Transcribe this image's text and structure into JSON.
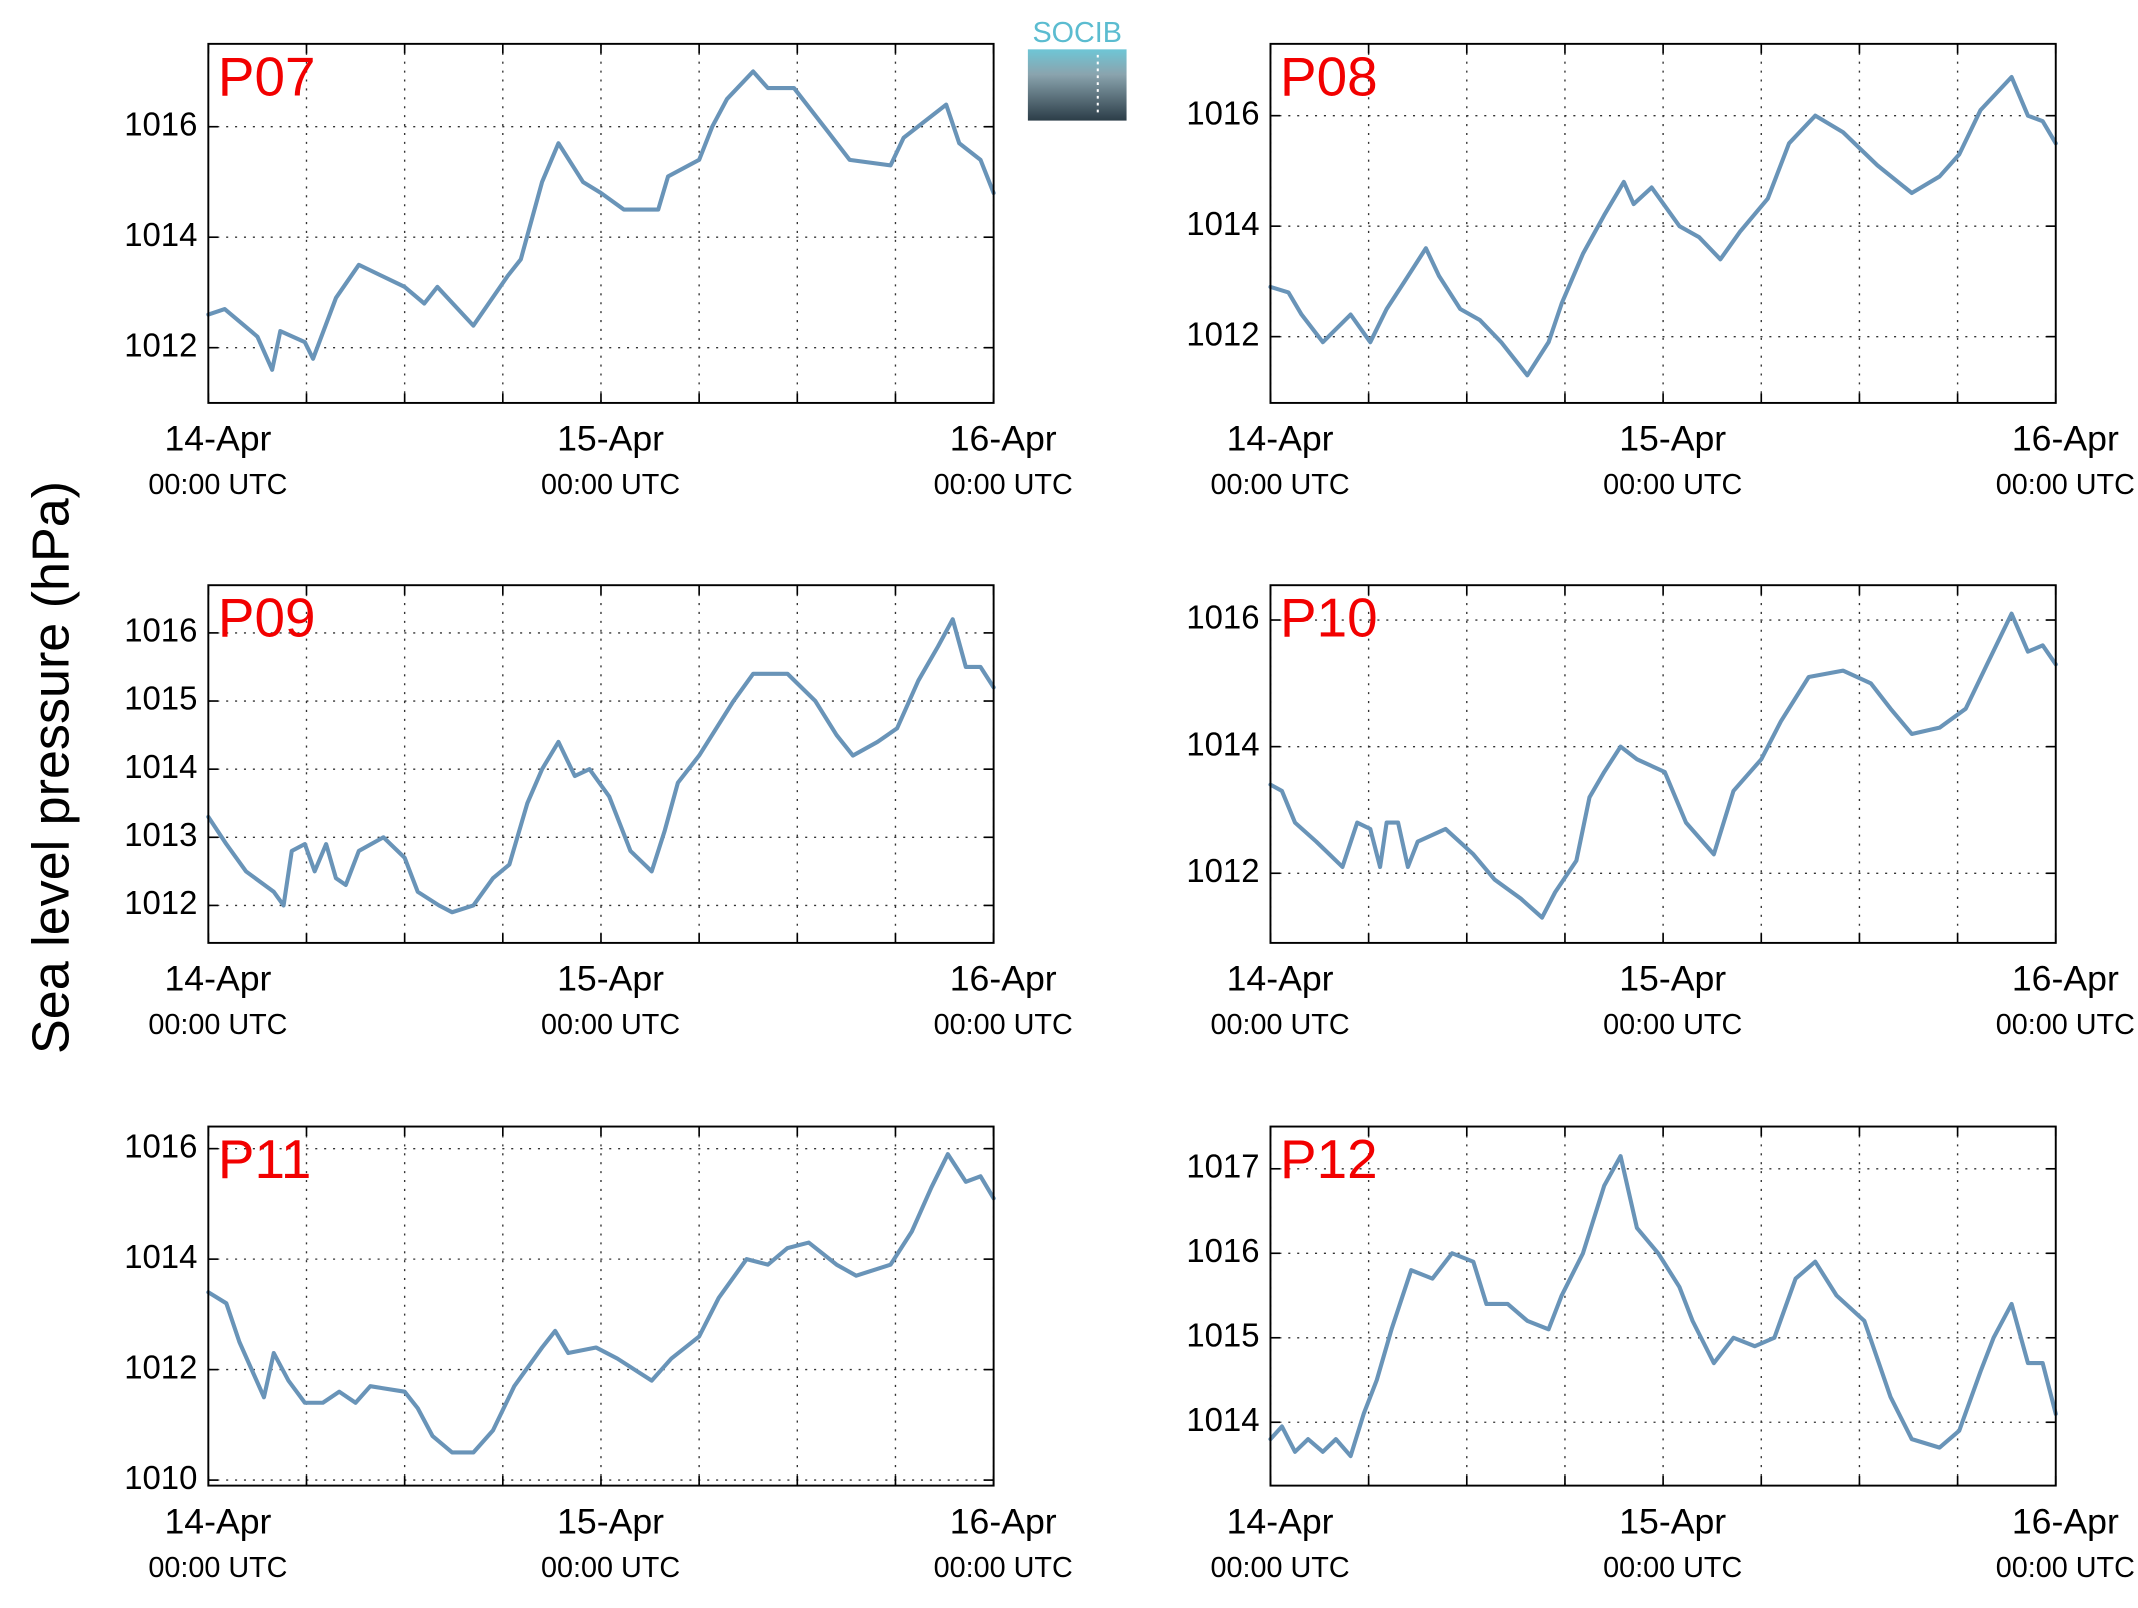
{
  "ylabel": "Sea level pressure (hPa)",
  "logo": "SOCIB",
  "chart_data": [
    {
      "type": "line",
      "title": "P07",
      "color": "#6994b8",
      "xlim": [
        0,
        48
      ],
      "ylim": [
        1011,
        1017.5
      ],
      "xticks": [
        {
          "value": 0,
          "label": "14-Apr",
          "sublabel": "00:00 UTC"
        },
        {
          "value": 24,
          "label": "15-Apr",
          "sublabel": "00:00 UTC"
        },
        {
          "value": 48,
          "label": "16-Apr",
          "sublabel": "00:00 UTC"
        }
      ],
      "xminorticks": [
        6,
        12,
        18,
        30,
        36,
        42
      ],
      "yticks": [
        1012,
        1014,
        1016
      ],
      "grid": true,
      "x": [
        0,
        1,
        3,
        3.9,
        4.4,
        5.9,
        6.4,
        7.8,
        9.2,
        12,
        13.2,
        14,
        16.2,
        18.3,
        19.1,
        20.4,
        21.4,
        22.9,
        24,
        25.4,
        27.5,
        28.1,
        30,
        30.8,
        31.7,
        33.3,
        34.2,
        35.8,
        37.9,
        39.2,
        41.7,
        42.5,
        45.1,
        45.9,
        47.2,
        48
      ],
      "values": [
        1012.6,
        1012.7,
        1012.2,
        1011.6,
        1012.3,
        1012.1,
        1011.8,
        1012.9,
        1013.5,
        1013.1,
        1012.8,
        1013.1,
        1012.4,
        1013.3,
        1013.6,
        1015.0,
        1015.7,
        1015.0,
        1014.8,
        1014.5,
        1014.5,
        1015.1,
        1015.4,
        1016.0,
        1016.5,
        1017.0,
        1016.7,
        1016.7,
        1015.9,
        1015.4,
        1015.3,
        1015.8,
        1016.4,
        1015.7,
        1015.4,
        1014.8
      ]
    },
    {
      "type": "line",
      "title": "P08",
      "color": "#6994b8",
      "xlim": [
        0,
        48
      ],
      "ylim": [
        1010.8,
        1017.3
      ],
      "xticks": [
        {
          "value": 0,
          "label": "14-Apr",
          "sublabel": "00:00 UTC"
        },
        {
          "value": 24,
          "label": "15-Apr",
          "sublabel": "00:00 UTC"
        },
        {
          "value": 48,
          "label": "16-Apr",
          "sublabel": "00:00 UTC"
        }
      ],
      "xminorticks": [
        6,
        12,
        18,
        30,
        36,
        42
      ],
      "yticks": [
        1012,
        1014,
        1016
      ],
      "grid": true,
      "x": [
        0,
        1.1,
        1.9,
        3.2,
        4.9,
        6.1,
        7.1,
        8.2,
        9.5,
        10.3,
        11.6,
        12.8,
        14.1,
        15.7,
        17,
        17.8,
        19.1,
        20.4,
        21.6,
        22.2,
        23.3,
        25,
        26.2,
        27.5,
        28.7,
        30.4,
        31.7,
        33.3,
        35,
        37.1,
        39.2,
        40.9,
        42.1,
        43.4,
        45.3,
        46.3,
        47.2,
        48
      ],
      "values": [
        1012.9,
        1012.8,
        1012.4,
        1011.9,
        1012.4,
        1011.9,
        1012.5,
        1013.0,
        1013.6,
        1013.1,
        1012.5,
        1012.3,
        1011.9,
        1011.3,
        1011.9,
        1012.6,
        1013.5,
        1014.2,
        1014.8,
        1014.4,
        1014.7,
        1014.0,
        1013.8,
        1013.4,
        1013.9,
        1014.5,
        1015.5,
        1016.0,
        1015.7,
        1015.1,
        1014.6,
        1014.9,
        1015.3,
        1016.1,
        1016.7,
        1016.0,
        1015.9,
        1015.5
      ]
    },
    {
      "type": "line",
      "title": "P09",
      "color": "#6994b8",
      "xlim": [
        0,
        48
      ],
      "ylim": [
        1011.45,
        1016.7
      ],
      "xticks": [
        {
          "value": 0,
          "label": "14-Apr",
          "sublabel": "00:00 UTC"
        },
        {
          "value": 24,
          "label": "15-Apr",
          "sublabel": "00:00 UTC"
        },
        {
          "value": 48,
          "label": "16-Apr",
          "sublabel": "00:00 UTC"
        }
      ],
      "xminorticks": [
        6,
        12,
        18,
        30,
        36,
        42
      ],
      "yticks": [
        1012,
        1013,
        1014,
        1015,
        1016
      ],
      "grid": true,
      "x": [
        0,
        1.1,
        2.3,
        4,
        4.6,
        5.1,
        5.9,
        6.5,
        7.2,
        7.8,
        8.4,
        9.2,
        10.7,
        12,
        12.8,
        14.1,
        14.9,
        16.2,
        17.4,
        18.4,
        19.5,
        20.4,
        21.4,
        22.4,
        23.3,
        24.5,
        25.8,
        27.1,
        27.9,
        28.7,
        30,
        32.1,
        33.3,
        35.4,
        37.1,
        38.4,
        39.4,
        40.9,
        42.1,
        43.4,
        44.6,
        45.5,
        46.3,
        47.2,
        48
      ],
      "values": [
        1013.3,
        1012.9,
        1012.5,
        1012.2,
        1012.0,
        1012.8,
        1012.9,
        1012.5,
        1012.9,
        1012.4,
        1012.3,
        1012.8,
        1013.0,
        1012.7,
        1012.2,
        1012.0,
        1011.9,
        1012.0,
        1012.4,
        1012.6,
        1013.5,
        1014.0,
        1014.4,
        1013.9,
        1014.0,
        1013.6,
        1012.8,
        1012.5,
        1013.1,
        1013.8,
        1014.2,
        1015.0,
        1015.4,
        1015.4,
        1015.0,
        1014.5,
        1014.2,
        1014.4,
        1014.6,
        1015.3,
        1015.8,
        1016.2,
        1015.5,
        1015.5,
        1015.2
      ]
    },
    {
      "type": "line",
      "title": "P10",
      "color": "#6994b8",
      "xlim": [
        0,
        48
      ],
      "ylim": [
        1010.9,
        1016.55
      ],
      "xticks": [
        {
          "value": 0,
          "label": "14-Apr",
          "sublabel": "00:00 UTC"
        },
        {
          "value": 24,
          "label": "15-Apr",
          "sublabel": "00:00 UTC"
        },
        {
          "value": 48,
          "label": "16-Apr",
          "sublabel": "00:00 UTC"
        }
      ],
      "xminorticks": [
        6,
        12,
        18,
        30,
        36,
        42
      ],
      "yticks": [
        1012,
        1014,
        1016
      ],
      "grid": true,
      "x": [
        0,
        0.7,
        1.5,
        2.8,
        3.6,
        4.4,
        5.3,
        6.1,
        6.7,
        7.1,
        7.8,
        8.4,
        9,
        10.7,
        12.4,
        13.7,
        15.3,
        16.6,
        17.4,
        18.7,
        19.5,
        20.4,
        21.4,
        22.4,
        24.1,
        25.4,
        27.1,
        28.3,
        30,
        31.2,
        32.9,
        35,
        36.7,
        37.9,
        39.2,
        40.9,
        42.5,
        43.8,
        45.3,
        46.3,
        47.2,
        48
      ],
      "values": [
        1013.4,
        1013.3,
        1012.8,
        1012.5,
        1012.3,
        1012.1,
        1012.8,
        1012.7,
        1012.1,
        1012.8,
        1012.8,
        1012.1,
        1012.5,
        1012.7,
        1012.3,
        1011.9,
        1011.6,
        1011.3,
        1011.7,
        1012.2,
        1013.2,
        1013.6,
        1014.0,
        1013.8,
        1013.6,
        1012.8,
        1012.3,
        1013.3,
        1013.8,
        1014.4,
        1015.1,
        1015.2,
        1015.0,
        1014.6,
        1014.2,
        1014.3,
        1014.6,
        1015.3,
        1016.1,
        1015.5,
        1015.6,
        1015.3
      ]
    },
    {
      "type": "line",
      "title": "P11",
      "color": "#6994b8",
      "xlim": [
        0,
        48
      ],
      "ylim": [
        1009.9,
        1016.4
      ],
      "xticks": [
        {
          "value": 0,
          "label": "14-Apr",
          "sublabel": "00:00 UTC"
        },
        {
          "value": 24,
          "label": "15-Apr",
          "sublabel": "00:00 UTC"
        },
        {
          "value": 48,
          "label": "16-Apr",
          "sublabel": "00:00 UTC"
        }
      ],
      "xminorticks": [
        6,
        12,
        18,
        30,
        36,
        42
      ],
      "yticks": [
        1010,
        1012,
        1014,
        1016
      ],
      "grid": true,
      "x": [
        0,
        1.1,
        1.9,
        2.8,
        3.4,
        4,
        4.9,
        5.9,
        7,
        8,
        9,
        9.9,
        12,
        12.8,
        13.7,
        14.9,
        16.2,
        17.4,
        18.7,
        20.4,
        21.2,
        22,
        23.7,
        25,
        27.1,
        28.3,
        30,
        31.2,
        32.9,
        34.2,
        35.4,
        36.7,
        38.4,
        39.6,
        41.7,
        43,
        44.2,
        45.2,
        46.3,
        47.2,
        48
      ],
      "values": [
        1013.4,
        1013.2,
        1012.5,
        1011.9,
        1011.5,
        1012.3,
        1011.8,
        1011.4,
        1011.4,
        1011.6,
        1011.4,
        1011.7,
        1011.6,
        1011.3,
        1010.8,
        1010.5,
        1010.5,
        1010.9,
        1011.7,
        1012.4,
        1012.7,
        1012.3,
        1012.4,
        1012.2,
        1011.8,
        1012.2,
        1012.6,
        1013.3,
        1014.0,
        1013.9,
        1014.2,
        1014.3,
        1013.9,
        1013.7,
        1013.9,
        1014.5,
        1015.3,
        1015.9,
        1015.4,
        1015.5,
        1015.1
      ]
    },
    {
      "type": "line",
      "title": "P12",
      "color": "#6994b8",
      "xlim": [
        0,
        48
      ],
      "ylim": [
        1013.25,
        1017.5
      ],
      "xticks": [
        {
          "value": 0,
          "label": "14-Apr",
          "sublabel": "00:00 UTC"
        },
        {
          "value": 24,
          "label": "15-Apr",
          "sublabel": "00:00 UTC"
        },
        {
          "value": 48,
          "label": "16-Apr",
          "sublabel": "00:00 UTC"
        }
      ],
      "xminorticks": [
        6,
        12,
        18,
        30,
        36,
        42
      ],
      "yticks": [
        1014,
        1015,
        1016,
        1017
      ],
      "grid": true,
      "x": [
        0,
        0.7,
        1.5,
        2.3,
        3.2,
        4,
        4.9,
        5.7,
        6.5,
        7.4,
        8.6,
        9.9,
        11.1,
        12.4,
        13.2,
        14.5,
        15.7,
        17,
        17.8,
        19.1,
        20.4,
        21.4,
        22.4,
        23.7,
        25,
        25.8,
        27.1,
        28.3,
        29.6,
        30.8,
        32.1,
        33.3,
        34.6,
        36.3,
        37.9,
        39.2,
        40.9,
        42.1,
        43.4,
        44.2,
        45.3,
        46.3,
        47.2,
        48
      ],
      "values": [
        1013.8,
        1013.95,
        1013.65,
        1013.8,
        1013.65,
        1013.8,
        1013.6,
        1014.1,
        1014.5,
        1015.1,
        1015.8,
        1015.7,
        1016.0,
        1015.9,
        1015.4,
        1015.4,
        1015.2,
        1015.1,
        1015.5,
        1016.0,
        1016.8,
        1017.15,
        1016.3,
        1016.0,
        1015.6,
        1015.2,
        1014.7,
        1015.0,
        1014.9,
        1015.0,
        1015.7,
        1015.9,
        1015.5,
        1015.2,
        1014.3,
        1013.8,
        1013.7,
        1013.9,
        1014.6,
        1015.0,
        1015.4,
        1014.7,
        1014.7,
        1014.1
      ]
    }
  ]
}
